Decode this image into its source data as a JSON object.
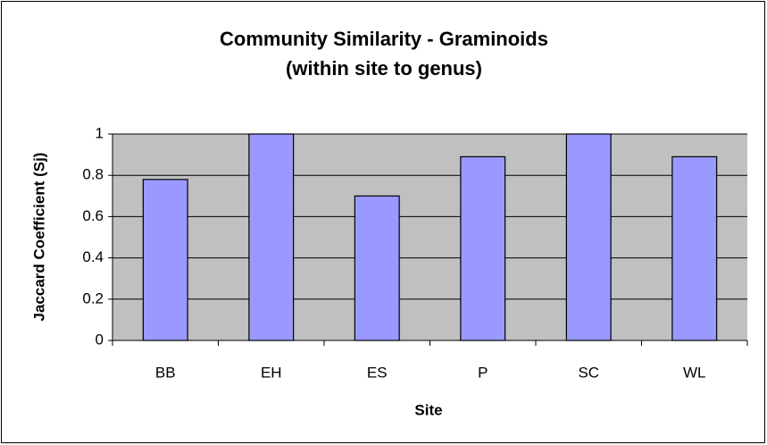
{
  "chart_data": {
    "type": "bar",
    "title": "Community Similarity - Graminoids",
    "subtitle": "(within site to genus)",
    "x_label": "Site",
    "y_label": "Jaccard Coefficient (Sj)",
    "categories": [
      "BB",
      "EH",
      "ES",
      "P",
      "SC",
      "WL"
    ],
    "values": [
      0.78,
      1,
      0.7,
      0.89,
      1,
      0.89
    ],
    "color": "#9999ff",
    "ylim": [
      0,
      1
    ],
    "yticks": [
      0,
      0.2,
      0.4,
      0.6,
      0.8,
      1
    ],
    "grid": true
  }
}
